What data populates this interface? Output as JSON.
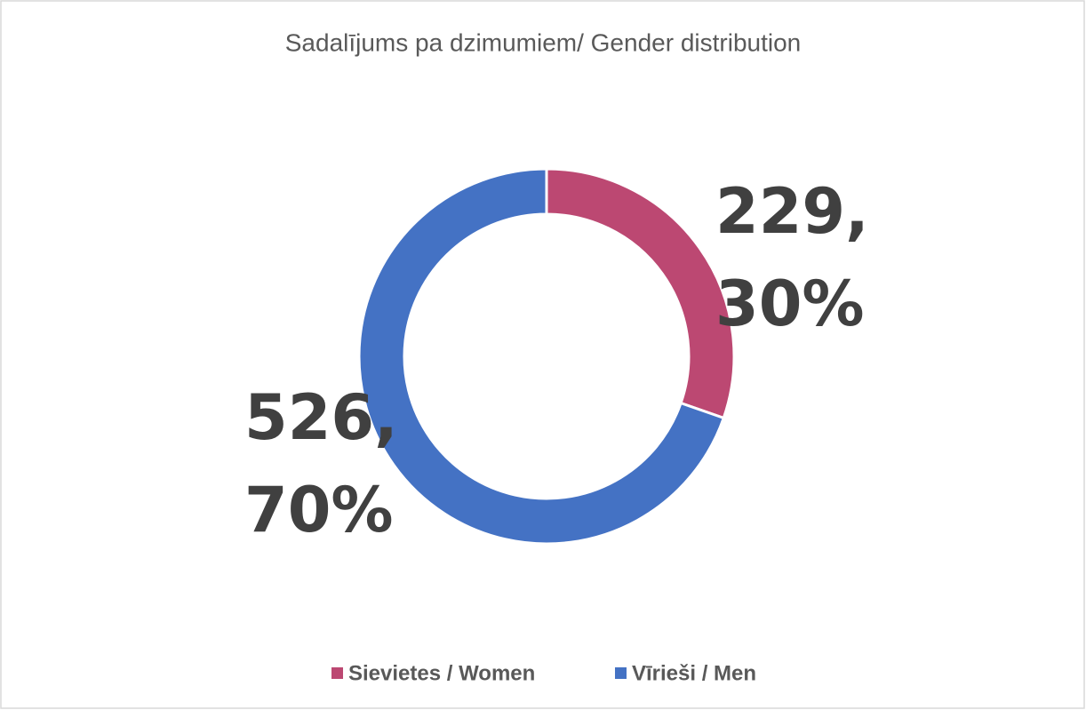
{
  "chart_data": {
    "type": "donut",
    "title": "Sadalījums pa dzimumiem/  Gender distribution",
    "categories": [
      "Sievietes / Women",
      "Vīrieši / Men"
    ],
    "values": [
      229,
      526
    ],
    "value_labels": [
      "229, 30%",
      "526, 70%"
    ],
    "colors": [
      "#bc4872",
      "#4472c4"
    ],
    "legend": "bottom"
  }
}
